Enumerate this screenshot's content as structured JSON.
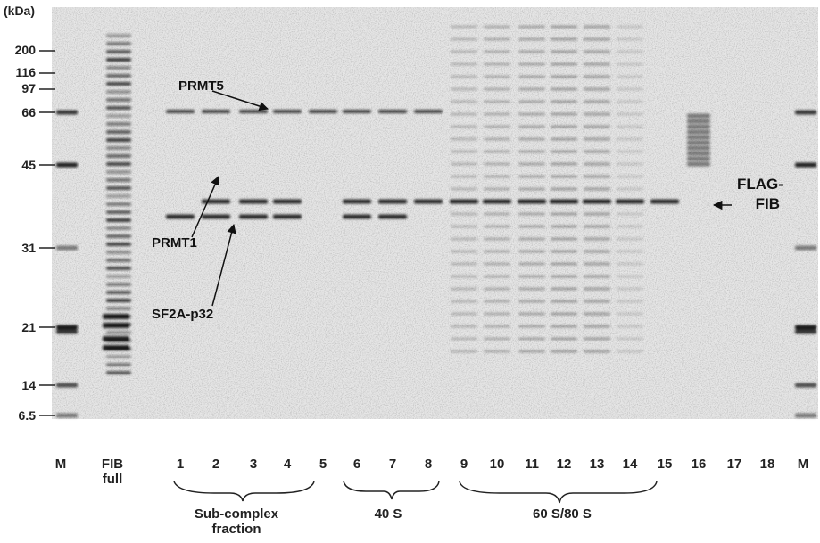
{
  "unit": "(kDa)",
  "markers": [
    "200",
    "116",
    "97",
    "66",
    "45",
    "31",
    "21",
    "14",
    "6.5"
  ],
  "lanes": [
    "M",
    "FIB full",
    "1",
    "2",
    "3",
    "4",
    "5",
    "6",
    "7",
    "8",
    "9",
    "10",
    "11",
    "12",
    "13",
    "14",
    "15",
    "16",
    "17",
    "18",
    "M"
  ],
  "groups": [
    "Sub-complex fraction",
    "40 S",
    "60 S/80 S"
  ],
  "annotations": [
    "PRMT5",
    "PRMT1",
    "SF2A-p32",
    "FLAG-FIB"
  ]
}
